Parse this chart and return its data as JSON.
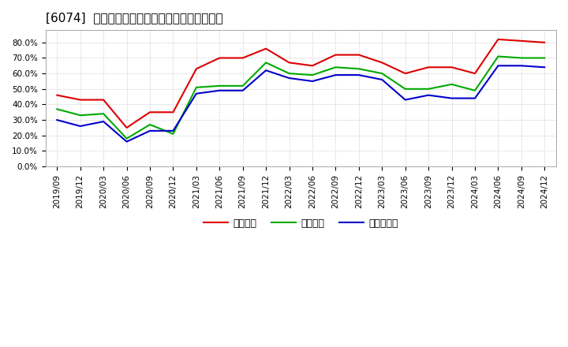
{
  "title": "[6074]  流動比率、当座比率、現預金比率の推移",
  "x_labels": [
    "2019/09",
    "2019/12",
    "2020/03",
    "2020/06",
    "2020/09",
    "2020/12",
    "2021/03",
    "2021/06",
    "2021/09",
    "2021/12",
    "2022/03",
    "2022/06",
    "2022/09",
    "2022/12",
    "2023/03",
    "2023/06",
    "2023/09",
    "2023/12",
    "2024/03",
    "2024/06",
    "2024/09",
    "2024/12"
  ],
  "ryudo": [
    0.46,
    0.43,
    0.43,
    0.25,
    0.35,
    0.35,
    0.63,
    0.7,
    0.7,
    0.76,
    0.67,
    0.65,
    0.72,
    0.72,
    0.67,
    0.6,
    0.64,
    0.64,
    0.6,
    0.82,
    0.81,
    0.8
  ],
  "toza": [
    0.37,
    0.33,
    0.34,
    0.18,
    0.27,
    0.21,
    0.51,
    0.52,
    0.52,
    0.67,
    0.6,
    0.59,
    0.64,
    0.63,
    0.6,
    0.5,
    0.5,
    0.53,
    0.49,
    0.71,
    0.7,
    0.7
  ],
  "genyo": [
    0.3,
    0.26,
    0.29,
    0.16,
    0.23,
    0.23,
    0.47,
    0.49,
    0.49,
    0.62,
    0.57,
    0.55,
    0.59,
    0.59,
    0.56,
    0.43,
    0.46,
    0.44,
    0.44,
    0.65,
    0.65,
    0.64
  ],
  "ryudo_color": "#dd0000",
  "toza_color": "#00aa00",
  "genyo_color": "#0000cc",
  "bg_color": "#ffffff",
  "plot_bg_color": "#ffffff",
  "grid_color": "#bbbbbb",
  "ylim": [
    0.0,
    0.88
  ],
  "yticks": [
    0.0,
    0.1,
    0.2,
    0.3,
    0.4,
    0.5,
    0.6,
    0.7,
    0.8
  ],
  "legend_labels": [
    "流動比率",
    "当座比率",
    "現預金比率"
  ],
  "title_fontsize": 11,
  "tick_fontsize": 7.5,
  "legend_fontsize": 9
}
